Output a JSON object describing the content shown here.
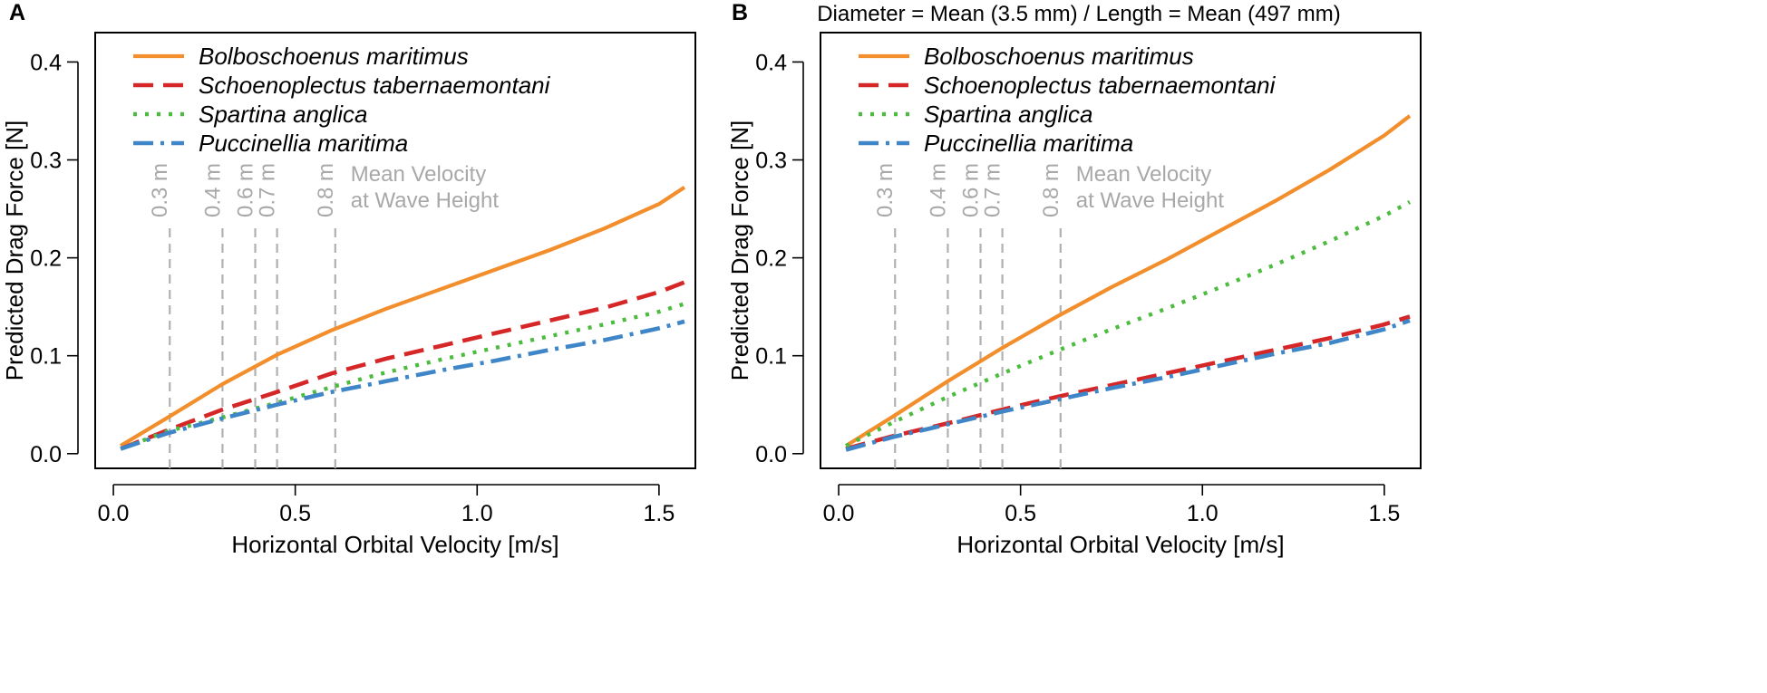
{
  "chart_data": [
    {
      "panel": "A",
      "type": "line",
      "title": "",
      "xlabel": "Horizontal Orbital Velocity [m/s]",
      "ylabel": "Predicted Drag Force [N]",
      "xlim": [
        -0.05,
        1.6
      ],
      "ylim": [
        -0.015,
        0.43
      ],
      "xticks": [
        0.0,
        0.5,
        1.0,
        1.5
      ],
      "xtick_labels": [
        "0.0",
        "0.5",
        "1.0",
        "1.5"
      ],
      "yticks": [
        0.0,
        0.1,
        0.2,
        0.3,
        0.4
      ],
      "ytick_labels": [
        "0.0",
        "0.1",
        "0.2",
        "0.3",
        "0.4"
      ],
      "legend_position": "top-left",
      "x": [
        0.02,
        0.15,
        0.3,
        0.45,
        0.6,
        0.75,
        0.9,
        1.05,
        1.2,
        1.35,
        1.5,
        1.57
      ],
      "series": [
        {
          "name": "Bolboschoenus maritimus",
          "style": "solid",
          "color": "#F28E2B",
          "values": [
            0.008,
            0.037,
            0.071,
            0.101,
            0.126,
            0.148,
            0.168,
            0.188,
            0.208,
            0.23,
            0.255,
            0.272
          ]
        },
        {
          "name": "Schoenoplectus tabernaemontani",
          "style": "dashed",
          "color": "#D62728",
          "values": [
            0.005,
            0.024,
            0.045,
            0.063,
            0.082,
            0.097,
            0.11,
            0.123,
            0.136,
            0.149,
            0.165,
            0.175
          ]
        },
        {
          "name": "Spartina anglica",
          "style": "dotted",
          "color": "#4CBB3F",
          "values": [
            0.005,
            0.023,
            0.037,
            0.052,
            0.068,
            0.083,
            0.096,
            0.108,
            0.12,
            0.132,
            0.145,
            0.153
          ]
        },
        {
          "name": "Puccinellia maritima",
          "style": "dashdot",
          "color": "#3E86C8",
          "values": [
            0.005,
            0.021,
            0.036,
            0.05,
            0.063,
            0.074,
            0.085,
            0.095,
            0.106,
            0.116,
            0.128,
            0.135
          ]
        }
      ],
      "reference_lines": {
        "title": [
          "Mean Velocity",
          "at Wave Height"
        ],
        "items": [
          {
            "label": "0.3 m",
            "x": 0.155
          },
          {
            "label": "0.4 m",
            "x": 0.3
          },
          {
            "label": "0.6 m",
            "x": 0.39
          },
          {
            "label": "0.7 m",
            "x": 0.45
          },
          {
            "label": "0.8 m",
            "x": 0.61
          }
        ]
      }
    },
    {
      "panel": "B",
      "type": "line",
      "title": "Diameter = Mean (3.5 mm) / Length = Mean (497 mm)",
      "xlabel": "Horizontal Orbital Velocity [m/s]",
      "ylabel": "Predicted Drag Force [N]",
      "xlim": [
        -0.05,
        1.6
      ],
      "ylim": [
        -0.015,
        0.43
      ],
      "xticks": [
        0.0,
        0.5,
        1.0,
        1.5
      ],
      "xtick_labels": [
        "0.0",
        "0.5",
        "1.0",
        "1.5"
      ],
      "yticks": [
        0.0,
        0.1,
        0.2,
        0.3,
        0.4
      ],
      "ytick_labels": [
        "0.0",
        "0.1",
        "0.2",
        "0.3",
        "0.4"
      ],
      "legend_position": "top-left",
      "x": [
        0.02,
        0.15,
        0.3,
        0.45,
        0.6,
        0.75,
        0.9,
        1.05,
        1.2,
        1.35,
        1.5,
        1.57
      ],
      "series": [
        {
          "name": "Bolboschoenus maritimus",
          "style": "solid",
          "color": "#F28E2B",
          "values": [
            0.008,
            0.038,
            0.074,
            0.108,
            0.14,
            0.17,
            0.198,
            0.228,
            0.258,
            0.29,
            0.325,
            0.345
          ]
        },
        {
          "name": "Schoenoplectus tabernaemontani",
          "style": "dashed",
          "color": "#D62728",
          "values": [
            0.005,
            0.018,
            0.031,
            0.045,
            0.058,
            0.07,
            0.082,
            0.094,
            0.106,
            0.118,
            0.132,
            0.14
          ]
        },
        {
          "name": "Spartina anglica",
          "style": "dotted",
          "color": "#4CBB3F",
          "values": [
            0.008,
            0.032,
            0.058,
            0.082,
            0.105,
            0.127,
            0.148,
            0.17,
            0.193,
            0.217,
            0.243,
            0.257
          ]
        },
        {
          "name": "Puccinellia maritima",
          "style": "dashdot",
          "color": "#3E86C8",
          "values": [
            0.004,
            0.017,
            0.03,
            0.043,
            0.055,
            0.067,
            0.078,
            0.09,
            0.102,
            0.113,
            0.127,
            0.136
          ]
        }
      ],
      "reference_lines": {
        "title": [
          "Mean Velocity",
          "at Wave Height"
        ],
        "items": [
          {
            "label": "0.3 m",
            "x": 0.155
          },
          {
            "label": "0.4 m",
            "x": 0.3
          },
          {
            "label": "0.6 m",
            "x": 0.39
          },
          {
            "label": "0.7 m",
            "x": 0.45
          },
          {
            "label": "0.8 m",
            "x": 0.61
          }
        ]
      }
    }
  ]
}
